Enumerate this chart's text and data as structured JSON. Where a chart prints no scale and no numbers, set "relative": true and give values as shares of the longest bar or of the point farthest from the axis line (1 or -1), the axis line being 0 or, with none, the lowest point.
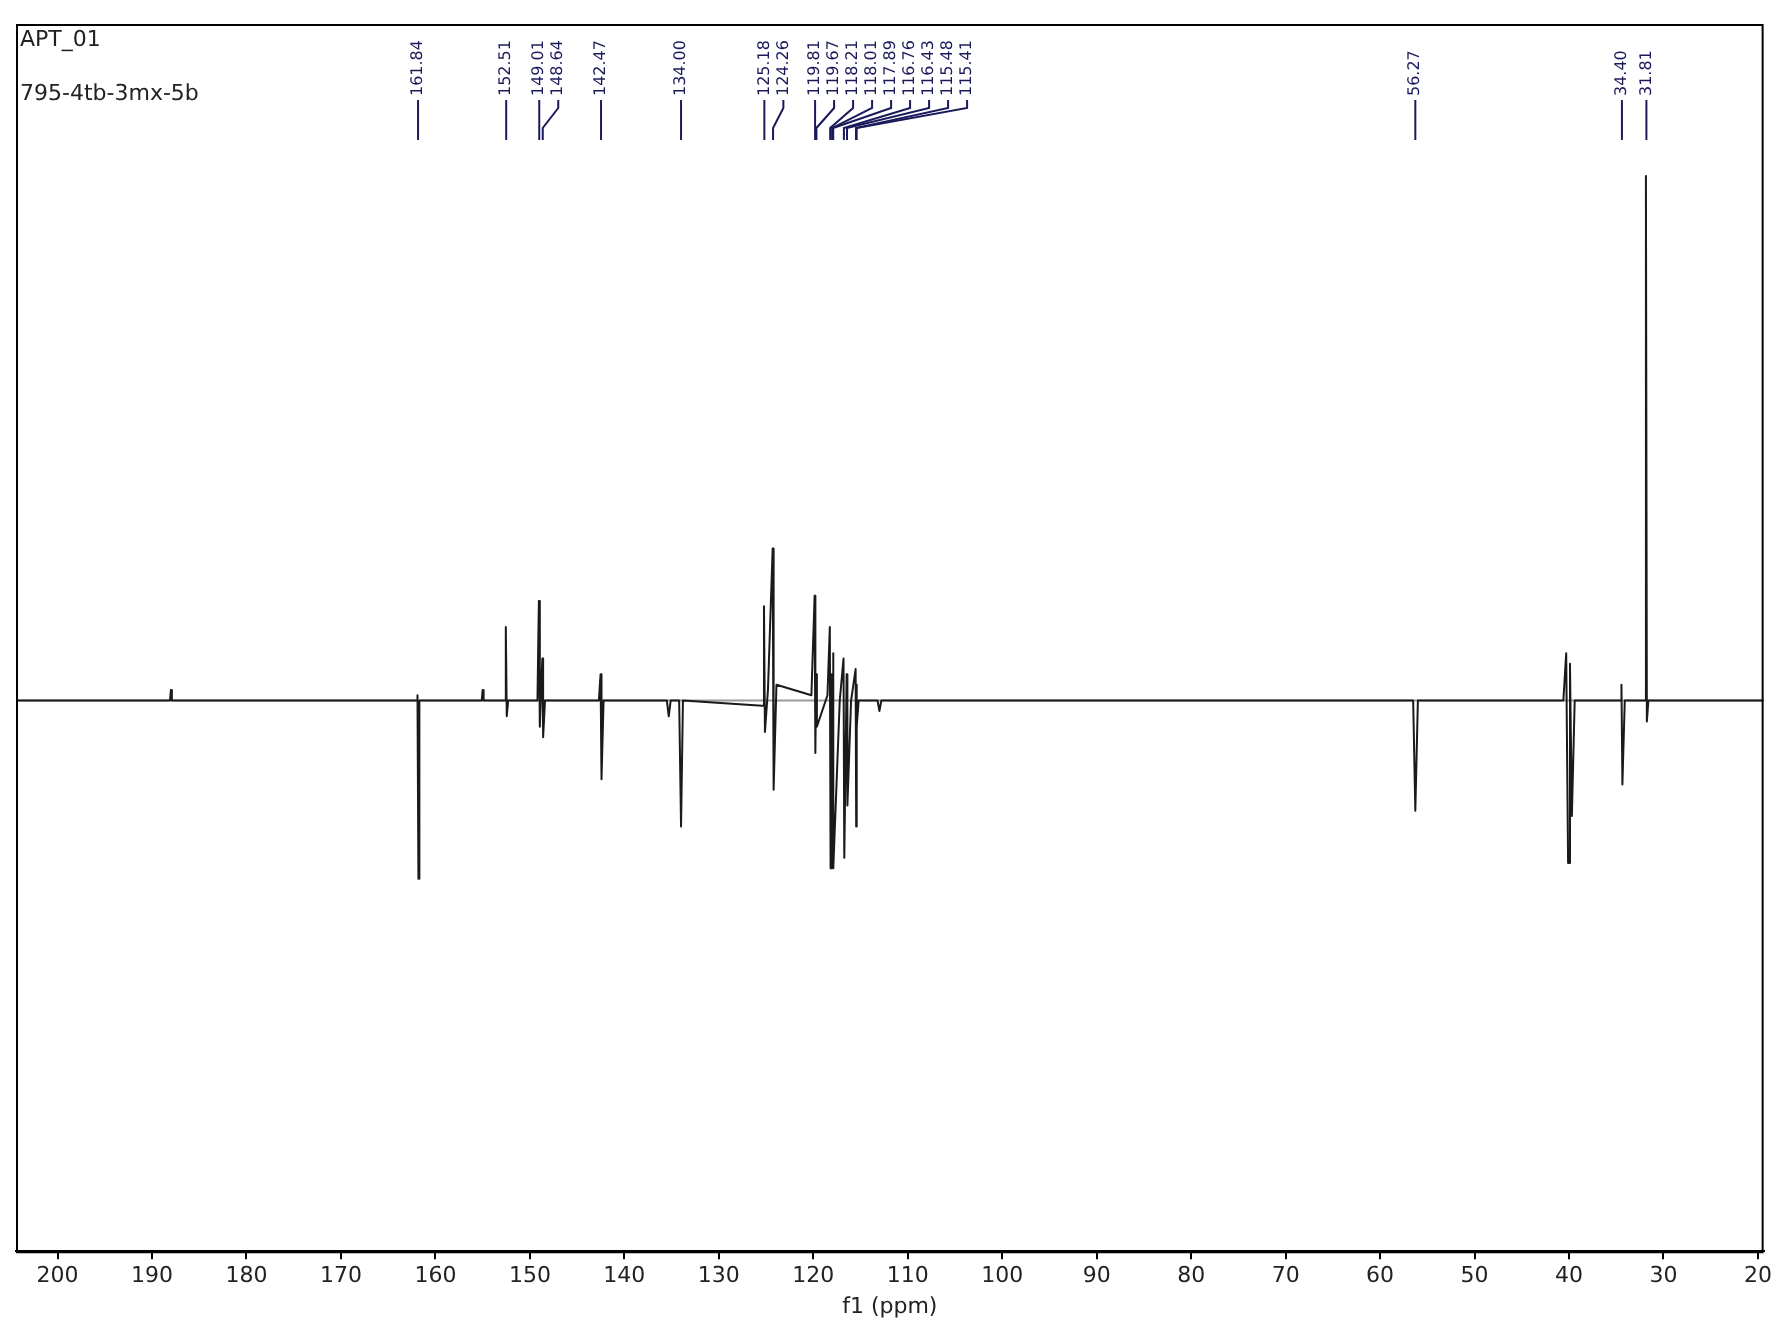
{
  "chart_data": {
    "type": "line",
    "title": "APT_01",
    "subtitle": "795-4tb-3mx-5b",
    "xlabel": "f1 (ppm)",
    "relative": true,
    "xlim": [
      204.4,
      19.4
    ],
    "xticks": [
      200,
      190,
      180,
      170,
      160,
      150,
      140,
      130,
      120,
      110,
      100,
      90,
      80,
      70,
      60,
      50,
      40,
      30,
      20
    ],
    "grid": false,
    "legend": false,
    "marker": "none",
    "line_style": "solid",
    "tick_labels": "x",
    "annotations": [
      {
        "text": "161.84",
        "x": 161.84
      },
      {
        "text": "152.51",
        "x": 152.51
      },
      {
        "text": "149.01",
        "x": 149.01
      },
      {
        "text": "148.64",
        "x": 148.64
      },
      {
        "text": "142.47",
        "x": 142.47
      },
      {
        "text": "134.00",
        "x": 134.0
      },
      {
        "text": "125.18",
        "x": 125.18
      },
      {
        "text": "124.26",
        "x": 124.26
      },
      {
        "text": "119.81",
        "x": 119.81
      },
      {
        "text": "119.67",
        "x": 119.67
      },
      {
        "text": "118.21",
        "x": 118.21
      },
      {
        "text": "118.01",
        "x": 118.01
      },
      {
        "text": "117.89",
        "x": 117.89
      },
      {
        "text": "116.76",
        "x": 116.76
      },
      {
        "text": "116.43",
        "x": 116.43
      },
      {
        "text": "115.48",
        "x": 115.48
      },
      {
        "text": "115.41",
        "x": 115.41
      },
      {
        "text": "56.27",
        "x": 56.27
      },
      {
        "text": "34.40",
        "x": 34.4
      },
      {
        "text": "31.81",
        "x": 31.81
      }
    ],
    "series": [
      {
        "color": "#1a1a1a",
        "x": [
          204.4,
          188.1,
          188.0,
          187.9,
          162.0,
          161.9,
          161.8,
          161.7,
          155.1,
          155.0,
          154.9,
          152.7,
          152.55,
          152.45,
          152.3,
          149.2,
          149.05,
          148.95,
          148.8,
          148.68,
          148.6,
          148.4,
          142.7,
          142.52,
          142.42,
          142.2,
          135.5,
          135.3,
          135.1,
          134.2,
          134.0,
          133.8,
          125.4,
          125.22,
          125.12,
          124.8,
          124.3,
          124.2,
          123.9,
          120.2,
          119.86,
          119.78,
          119.7,
          119.62,
          118.5,
          118.25,
          118.17,
          118.05,
          117.97,
          117.92,
          117.85,
          117.2,
          116.8,
          116.72,
          116.47,
          116.39,
          116.0,
          115.52,
          115.46,
          115.43,
          115.38,
          115.2,
          113.2,
          113.0,
          112.8,
          56.5,
          56.27,
          56.0,
          40.6,
          40.3,
          40.1,
          39.9,
          39.7,
          39.4,
          34.6,
          34.45,
          34.35,
          34.1,
          32.0,
          31.86,
          31.76,
          31.6,
          19.4
        ],
        "values": [
          0,
          0,
          0.02,
          0,
          0,
          0.01,
          -0.34,
          0,
          0,
          0.02,
          0,
          0,
          0.14,
          -0.03,
          0,
          0,
          0.19,
          -0.05,
          0.03,
          0.08,
          -0.07,
          0,
          0,
          0.05,
          -0.15,
          0,
          0,
          -0.03,
          0,
          0,
          -0.24,
          0,
          -0.01,
          0.18,
          -0.06,
          0.02,
          0.29,
          -0.17,
          0.03,
          0.01,
          0.2,
          -0.1,
          0.05,
          -0.05,
          0.01,
          0.14,
          -0.32,
          0.05,
          -0.1,
          0.09,
          -0.32,
          0,
          0.08,
          -0.3,
          0.05,
          -0.2,
          0,
          0.06,
          -0.24,
          0.03,
          -0.05,
          0,
          0,
          -0.02,
          0,
          0,
          -0.21,
          0,
          0,
          0.09,
          -0.31,
          0.07,
          -0.22,
          0,
          0,
          0.03,
          -0.16,
          0,
          0,
          1,
          -0.04,
          0,
          0
        ]
      }
    ]
  }
}
